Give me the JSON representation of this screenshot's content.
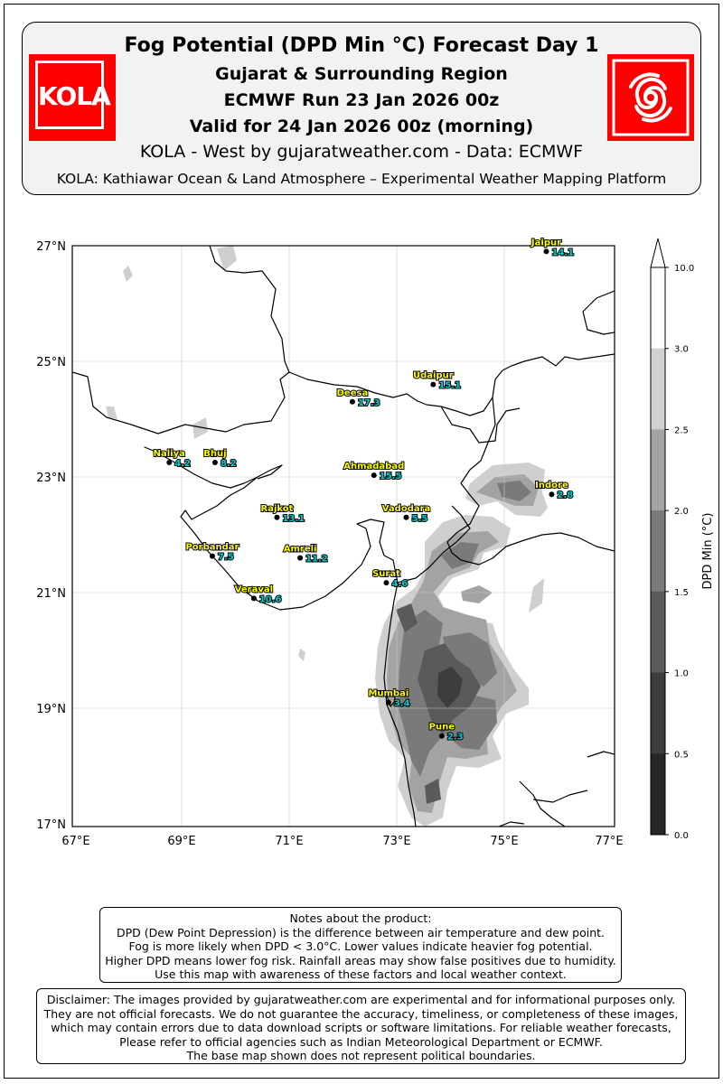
{
  "header": {
    "title": "Fog Potential (DPD Min °C) Forecast Day 1",
    "region": "Gujarat & Surrounding Region",
    "run": "ECMWF Run 23 Jan 2026 00z",
    "valid": "Valid for 24 Jan 2026 00z (morning)",
    "credit": "KOLA - West by gujaratweather.com  -  Data: ECMWF",
    "platform": "KOLA: Kathiawar Ocean & Land Atmosphere – Experimental Weather Mapping Platform",
    "logo_left_text": "KOLA",
    "logo_left_icon": "kola-logo",
    "logo_right_icon": "cyclone-icon",
    "logo_color": "#ff0000"
  },
  "map": {
    "lat_labels": [
      "27°N",
      "25°N",
      "23°N",
      "21°N",
      "19°N",
      "17°N"
    ],
    "lon_labels": [
      "67°E",
      "69°E",
      "71°E",
      "73°E",
      "75°E",
      "77°E"
    ],
    "cities": [
      {
        "name": "Jaipur",
        "value": "14.1"
      },
      {
        "name": "Udaipur",
        "value": "15.1"
      },
      {
        "name": "Deesa",
        "value": "17.3"
      },
      {
        "name": "Naliya",
        "value": "4.2"
      },
      {
        "name": "Bhuj",
        "value": "8.2"
      },
      {
        "name": "Ahmadabad",
        "value": "15.5"
      },
      {
        "name": "Indore",
        "value": "2.8"
      },
      {
        "name": "Rajkot",
        "value": "13.1"
      },
      {
        "name": "Vadodara",
        "value": "5.5"
      },
      {
        "name": "Porbandar",
        "value": "7.5"
      },
      {
        "name": "Amreli",
        "value": "11.2"
      },
      {
        "name": "Surat",
        "value": "4.6"
      },
      {
        "name": "Veraval",
        "value": "10.6"
      },
      {
        "name": "Mumbai",
        "value": "3.4"
      },
      {
        "name": "Pune",
        "value": "2.3"
      }
    ],
    "city_label_color": "#ffff00",
    "value_label_color": "#00d0d0"
  },
  "colorbar": {
    "label": "DPD Min (°C)",
    "ticks": [
      "10.0",
      "3.0",
      "2.5",
      "2.0",
      "1.5",
      "1.0",
      "0.5",
      "0.0"
    ],
    "colors": [
      "#ffffff",
      "#d0d0d0",
      "#a3a3a3",
      "#7a7a7a",
      "#5a5a5a",
      "#3d3d3d",
      "#262626"
    ]
  },
  "notes": {
    "title": "Notes about the product:",
    "lines": [
      "DPD (Dew Point Depression) is the difference between air temperature and dew point.",
      "Fog is more likely when DPD < 3.0°C. Lower values indicate heavier fog potential.",
      "Higher DPD means lower fog risk. Rainfall areas may show false positives due to humidity.",
      "Use this map with awareness of these factors and local weather context."
    ]
  },
  "disclaimer": {
    "lines": [
      "Disclaimer: The images provided by gujaratweather.com are experimental and for informational purposes only.",
      "They are not official forecasts. We do not guarantee the accuracy, timeliness, or completeness of these images,",
      "which may contain errors due to data download scripts or software limitations. For reliable weather forecasts,",
      "Please refer to official agencies such as Indian Meteorological Department or ECMWF.",
      "The base map shown does not represent political boundaries."
    ]
  }
}
